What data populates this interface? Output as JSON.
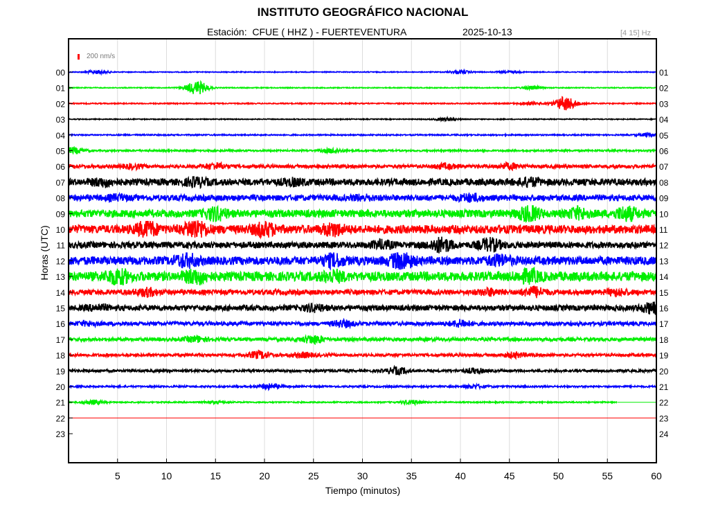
{
  "header": {
    "title": "INSTITUTO GEOGRÁFICO NACIONAL",
    "station": "Estación:  CFUE ( HHZ ) - FUERTEVENTURA",
    "date": "2025-10-13",
    "band": "[4 15] Hz"
  },
  "chart_data": {
    "type": "line",
    "title": "INSTITUTO GEOGRÁFICO NACIONAL",
    "xlabel": "Tiempo (minutos)",
    "ylabel": "Horas (UTC)",
    "xlim": [
      0,
      60
    ],
    "x_ticks": [
      5,
      10,
      15,
      20,
      25,
      30,
      35,
      40,
      45,
      50,
      55,
      60
    ],
    "y_ticks_left": [
      "00",
      "01",
      "02",
      "03",
      "04",
      "05",
      "06",
      "07",
      "08",
      "09",
      "10",
      "11",
      "12",
      "13",
      "14",
      "15",
      "16",
      "17",
      "18",
      "19",
      "20",
      "21",
      "22",
      "23"
    ],
    "y_ticks_right": [
      "01",
      "02",
      "03",
      "04",
      "05",
      "06",
      "07",
      "08",
      "09",
      "10",
      "11",
      "12",
      "13",
      "14",
      "15",
      "16",
      "17",
      "18",
      "19",
      "20",
      "21",
      "22",
      "23",
      "24"
    ],
    "amplitude_scale": "200 nm/s",
    "grid": true,
    "trace_colors": [
      "#0000ff",
      "#00ee00",
      "#ff0000",
      "#000000"
    ],
    "series": [
      {
        "hour": "00",
        "color": "#0000ff",
        "base_amplitude": 0.2,
        "bursts": [
          [
            3,
            0.8
          ],
          [
            40,
            0.7
          ],
          [
            45,
            0.5
          ]
        ]
      },
      {
        "hour": "01",
        "color": "#00ee00",
        "base_amplitude": 0.2,
        "bursts": [
          [
            13.1,
            3.2
          ],
          [
            47.3,
            0.8
          ]
        ]
      },
      {
        "hour": "02",
        "color": "#ff0000",
        "base_amplitude": 0.25,
        "bursts": [
          [
            50.7,
            3.3
          ],
          [
            47,
            0.6
          ]
        ]
      },
      {
        "hour": "03",
        "color": "#000000",
        "base_amplitude": 0.2,
        "bursts": [
          [
            38.5,
            0.7
          ]
        ]
      },
      {
        "hour": "04",
        "color": "#0000ff",
        "base_amplitude": 0.3,
        "bursts": [
          [
            59.3,
            0.8
          ]
        ]
      },
      {
        "hour": "05",
        "color": "#00ee00",
        "base_amplitude": 0.4,
        "bursts": [
          [
            0.5,
            1.4
          ],
          [
            27,
            1.0
          ]
        ]
      },
      {
        "hour": "06",
        "color": "#ff0000",
        "base_amplitude": 0.8,
        "bursts": [
          [
            15,
            1.3
          ],
          [
            45,
            1.2
          ],
          [
            6.5,
            0.9
          ],
          [
            38.5,
            1.0
          ]
        ]
      },
      {
        "hour": "07",
        "color": "#000000",
        "base_amplitude": 1.6,
        "bursts": [
          [
            3.5,
            1.3
          ],
          [
            13,
            1.4
          ],
          [
            47,
            1.3
          ],
          [
            23,
            1.0
          ]
        ]
      },
      {
        "hour": "08",
        "color": "#0000ff",
        "base_amplitude": 1.4,
        "bursts": [
          [
            41,
            1.3
          ],
          [
            5,
            0.9
          ],
          [
            30,
            0.8
          ]
        ]
      },
      {
        "hour": "09",
        "color": "#00ee00",
        "base_amplitude": 1.8,
        "bursts": [
          [
            15,
            2.5
          ],
          [
            47,
            3.0
          ],
          [
            57,
            2.7
          ],
          [
            52,
            2.0
          ]
        ]
      },
      {
        "hour": "10",
        "color": "#ff0000",
        "base_amplitude": 2.0,
        "bursts": [
          [
            13,
            4.0
          ],
          [
            8,
            3.0
          ],
          [
            20,
            2.6
          ],
          [
            27,
            2.2
          ]
        ]
      },
      {
        "hour": "11",
        "color": "#000000",
        "base_amplitude": 1.5,
        "bursts": [
          [
            38,
            3.0
          ],
          [
            43,
            2.5
          ],
          [
            32,
            1.5
          ]
        ]
      },
      {
        "hour": "12",
        "color": "#0000ff",
        "base_amplitude": 2.0,
        "bursts": [
          [
            34,
            3.5
          ],
          [
            12,
            2.5
          ],
          [
            27,
            2.2
          ],
          [
            44,
            1.8
          ]
        ]
      },
      {
        "hour": "13",
        "color": "#00ee00",
        "base_amplitude": 2.2,
        "bursts": [
          [
            5,
            3.0
          ],
          [
            13,
            2.6
          ],
          [
            47,
            2.2
          ],
          [
            27,
            1.8
          ]
        ]
      },
      {
        "hour": "14",
        "color": "#ff0000",
        "base_amplitude": 1.2,
        "bursts": [
          [
            8,
            1.5
          ],
          [
            47.5,
            2.0
          ],
          [
            43,
            1.2
          ],
          [
            56,
            1.2
          ]
        ]
      },
      {
        "hour": "15",
        "color": "#000000",
        "base_amplitude": 1.3,
        "bursts": [
          [
            59.5,
            2.0
          ],
          [
            25,
            1.2
          ],
          [
            3,
            1.0
          ]
        ]
      },
      {
        "hour": "16",
        "color": "#0000ff",
        "base_amplitude": 0.9,
        "bursts": [
          [
            28,
            1.3
          ],
          [
            40,
            1.4
          ],
          [
            2,
            0.8
          ]
        ]
      },
      {
        "hour": "17",
        "color": "#00ee00",
        "base_amplitude": 0.8,
        "bursts": [
          [
            13,
            1.2
          ],
          [
            25,
            1.8
          ]
        ]
      },
      {
        "hour": "18",
        "color": "#ff0000",
        "base_amplitude": 0.7,
        "bursts": [
          [
            19.5,
            1.6
          ],
          [
            24,
            1.0
          ],
          [
            45.5,
            1.1
          ]
        ]
      },
      {
        "hour": "19",
        "color": "#000000",
        "base_amplitude": 0.6,
        "bursts": [
          [
            33.5,
            1.5
          ],
          [
            41.5,
            1.0
          ]
        ]
      },
      {
        "hour": "20",
        "color": "#0000ff",
        "base_amplitude": 0.4,
        "bursts": [
          [
            20.5,
            1.2
          ],
          [
            41.5,
            0.8
          ]
        ]
      },
      {
        "hour": "21",
        "color": "#00ee00",
        "base_amplitude": 0.3,
        "bursts": [
          [
            2.5,
            1.0
          ],
          [
            35,
            1.0
          ],
          [
            15,
            0.5
          ]
        ],
        "end_minute": 56
      },
      {
        "hour": "22",
        "color": "#ff0000",
        "base_amplitude": 0.0,
        "bursts": []
      }
    ]
  }
}
